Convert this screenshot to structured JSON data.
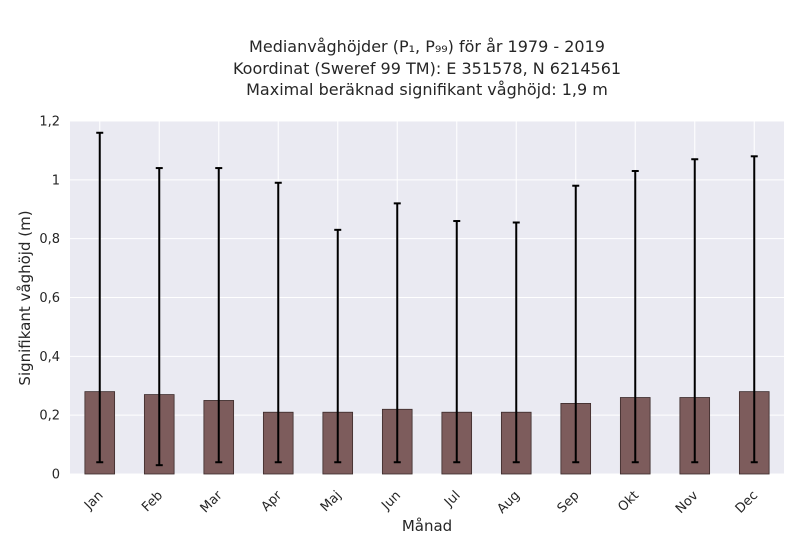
{
  "chart_data": {
    "type": "bar",
    "title_lines": [
      "Medianvåghöjder (P₁, P₉₉) för år 1979 - 2019",
      "Koordinat (Sweref 99 TM): E 351578, N 6214561",
      "Maximal beräknad signifikant våghöjd: 1,9 m"
    ],
    "xlabel": "Månad",
    "ylabel": "Signifikant våghöjd (m)",
    "categories": [
      "Jan",
      "Feb",
      "Mar",
      "Apr",
      "Maj",
      "Jun",
      "Jul",
      "Aug",
      "Sep",
      "Okt",
      "Nov",
      "Dec"
    ],
    "values": [
      0.28,
      0.27,
      0.25,
      0.21,
      0.21,
      0.22,
      0.21,
      0.21,
      0.24,
      0.26,
      0.26,
      0.28
    ],
    "error_low": [
      0.04,
      0.03,
      0.04,
      0.04,
      0.04,
      0.04,
      0.04,
      0.04,
      0.04,
      0.04,
      0.04,
      0.04
    ],
    "error_high": [
      1.16,
      1.04,
      1.04,
      0.99,
      0.83,
      0.92,
      0.86,
      0.855,
      0.98,
      1.03,
      1.07,
      1.08
    ],
    "ylim": [
      0,
      1.2
    ],
    "yticks": [
      0,
      0.2,
      0.4,
      0.6,
      0.8,
      1,
      1.2
    ],
    "ytick_labels": [
      "0",
      "0,2",
      "0,4",
      "0,6",
      "0,8",
      "1",
      "1,2"
    ],
    "grid": true,
    "colors": {
      "bar": "#7d5c5c",
      "bar_edge": "#3b2a2a",
      "error": "#000000",
      "plot_bg": "#eaeaf2",
      "grid": "#ffffff"
    }
  }
}
